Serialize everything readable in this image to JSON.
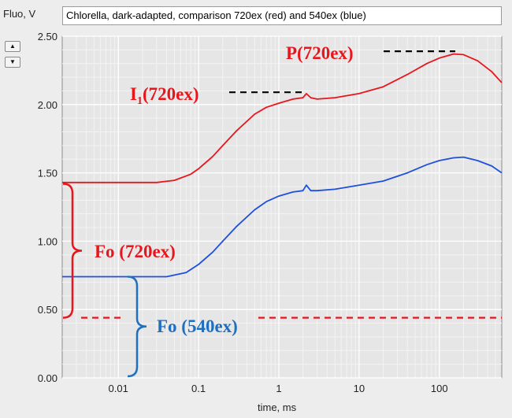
{
  "chart_data": {
    "type": "line",
    "title": "Chlorella, dark-adapted, comparison 720ex (red) and 540ex (blue)",
    "ylabel": "Fluo, V",
    "xlabel": "time, ms",
    "xscale": "log",
    "xlim": [
      0.002,
      600
    ],
    "ylim": [
      0,
      2.5
    ],
    "x_ticks": [
      0.01,
      0.1,
      1,
      10,
      100
    ],
    "x_tick_labels": [
      "0.01",
      "0.1",
      "1",
      "10",
      "100"
    ],
    "y_ticks": [
      0,
      0.5,
      1,
      1.5,
      2,
      2.5
    ],
    "y_tick_labels": [
      "0.00",
      "0.50",
      "1.00",
      "1.50",
      "2.00",
      "2.50"
    ],
    "grid": true,
    "series": [
      {
        "color": "#e8161c",
        "points": [
          [
            0.002,
            1.43
          ],
          [
            0.01,
            1.43
          ],
          [
            0.03,
            1.43
          ],
          [
            0.05,
            1.445
          ],
          [
            0.08,
            1.49
          ],
          [
            0.1,
            1.53
          ],
          [
            0.15,
            1.62
          ],
          [
            0.2,
            1.7
          ],
          [
            0.3,
            1.81
          ],
          [
            0.5,
            1.93
          ],
          [
            0.7,
            1.98
          ],
          [
            1,
            2.01
          ],
          [
            1.5,
            2.04
          ],
          [
            2,
            2.05
          ],
          [
            2.2,
            2.08
          ],
          [
            2.5,
            2.05
          ],
          [
            3,
            2.04
          ],
          [
            5,
            2.05
          ],
          [
            10,
            2.08
          ],
          [
            20,
            2.13
          ],
          [
            40,
            2.22
          ],
          [
            70,
            2.3
          ],
          [
            100,
            2.34
          ],
          [
            150,
            2.37
          ],
          [
            200,
            2.365
          ],
          [
            300,
            2.32
          ],
          [
            450,
            2.24
          ],
          [
            600,
            2.16
          ]
        ]
      },
      {
        "color": "#1f4fdd",
        "points": [
          [
            0.002,
            0.74
          ],
          [
            0.01,
            0.74
          ],
          [
            0.04,
            0.74
          ],
          [
            0.07,
            0.77
          ],
          [
            0.1,
            0.83
          ],
          [
            0.15,
            0.92
          ],
          [
            0.2,
            1.0
          ],
          [
            0.3,
            1.11
          ],
          [
            0.5,
            1.23
          ],
          [
            0.7,
            1.29
          ],
          [
            1,
            1.33
          ],
          [
            1.5,
            1.36
          ],
          [
            2,
            1.37
          ],
          [
            2.2,
            1.41
          ],
          [
            2.5,
            1.37
          ],
          [
            3,
            1.37
          ],
          [
            5,
            1.38
          ],
          [
            10,
            1.41
          ],
          [
            20,
            1.44
          ],
          [
            40,
            1.5
          ],
          [
            70,
            1.56
          ],
          [
            100,
            1.59
          ],
          [
            150,
            1.61
          ],
          [
            200,
            1.615
          ],
          [
            300,
            1.59
          ],
          [
            450,
            1.55
          ],
          [
            600,
            1.5
          ]
        ]
      }
    ],
    "annotations": [
      {
        "text": "P(720ex)",
        "color": "#e8161c"
      },
      {
        "text": "I",
        "sub": "1",
        "tail": "(720ex)",
        "color": "#e8161c"
      },
      {
        "text": "Fo (720ex)",
        "color": "#e8161c"
      },
      {
        "text": "Fo (540ex)",
        "color": "#1f6fc0"
      }
    ],
    "reference_lines": [
      {
        "value": 2.39,
        "color": "#000000",
        "style": "dashed"
      },
      {
        "value": 2.09,
        "color": "#000000",
        "style": "dashed"
      },
      {
        "value": 0.44,
        "color": "#e8161c",
        "style": "dashed"
      }
    ]
  },
  "controls": {
    "spin_up_icon": "triangle-up-icon",
    "spin_down_icon": "triangle-down-icon"
  }
}
